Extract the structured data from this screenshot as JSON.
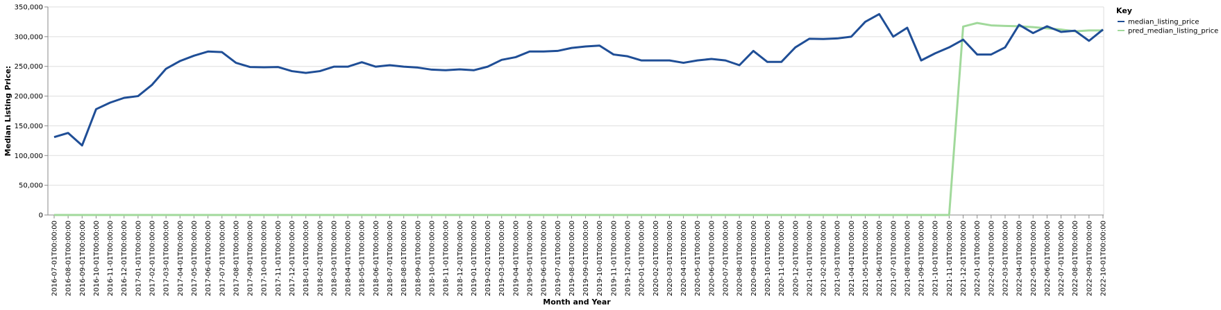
{
  "chart_data": {
    "type": "line",
    "xlabel": "Month and Year",
    "ylabel": "Median Listing Price:",
    "ylim": [
      0,
      350000
    ],
    "yticks": [
      "0",
      "50,000",
      "100,000",
      "150,000",
      "200,000",
      "250,000",
      "300,000",
      "350,000"
    ],
    "ytick_values": [
      0,
      50000,
      100000,
      150000,
      200000,
      250000,
      300000,
      350000
    ],
    "grid": true,
    "legend_placement": "top-right",
    "legend_title": "Key",
    "x": [
      "2016-07-01T00:00:00",
      "2016-08-01T00:00:00",
      "2016-09-01T00:00:00",
      "2016-10-01T00:00:00",
      "2016-11-01T00:00:00",
      "2016-12-01T00:00:00",
      "2017-01-01T00:00:00",
      "2017-02-01T00:00:00",
      "2017-03-01T00:00:00",
      "2017-04-01T00:00:00",
      "2017-05-01T00:00:00",
      "2017-06-01T00:00:00",
      "2017-07-01T00:00:00",
      "2017-08-01T00:00:00",
      "2017-09-01T00:00:00",
      "2017-10-01T00:00:00",
      "2017-11-01T00:00:00",
      "2017-12-01T00:00:00",
      "2018-01-01T00:00:00",
      "2018-02-01T00:00:00",
      "2018-03-01T00:00:00",
      "2018-04-01T00:00:00",
      "2018-05-01T00:00:00",
      "2018-06-01T00:00:00",
      "2018-07-01T00:00:00",
      "2018-08-01T00:00:00",
      "2018-09-01T00:00:00",
      "2018-10-01T00:00:00",
      "2018-11-01T00:00:00",
      "2018-12-01T00:00:00",
      "2019-01-01T00:00:00",
      "2019-02-01T00:00:00",
      "2019-03-01T00:00:00",
      "2019-04-01T00:00:00",
      "2019-05-01T00:00:00",
      "2019-06-01T00:00:00",
      "2019-07-01T00:00:00",
      "2019-08-01T00:00:00",
      "2019-09-01T00:00:00",
      "2019-10-01T00:00:00",
      "2019-11-01T00:00:00",
      "2019-12-01T00:00:00",
      "2020-01-01T00:00:00",
      "2020-02-01T00:00:00",
      "2020-03-01T00:00:00",
      "2020-04-01T00:00:00",
      "2020-05-01T00:00:00",
      "2020-06-01T00:00:00",
      "2020-07-01T00:00:00",
      "2020-08-01T00:00:00",
      "2020-09-01T00:00:00",
      "2020-10-01T00:00:00",
      "2020-11-01T00:00:00",
      "2020-12-01T00:00:00",
      "2021-01-01T00:00:00",
      "2021-02-01T00:00:00",
      "2021-03-01T00:00:00",
      "2021-04-01T00:00:00",
      "2021-05-01T00:00:00",
      "2021-06-01T00:00:00",
      "2021-07-01T00:00:00",
      "2021-08-01T00:00:00",
      "2021-09-01T00:00:00",
      "2021-10-01T00:00:00",
      "2021-11-01T00:00:00",
      "2021-12-01T00:00:00",
      "2022-01-01T00:00:00",
      "2022-02-01T00:00:00",
      "2022-03-01T00:00:00",
      "2022-04-01T00:00:00",
      "2022-05-01T00:00:00",
      "2022-06-01T00:00:00",
      "2022-07-01T00:00:00",
      "2022-08-01T00:00:00",
      "2022-09-01T00:00:00",
      "2022-10-01T00:00:00"
    ],
    "series": [
      {
        "name": "median_listing_price",
        "color": "#1f4e96",
        "values": [
          131000,
          138000,
          117000,
          178000,
          189000,
          197000,
          200000,
          219000,
          246000,
          259000,
          268000,
          275000,
          274000,
          256000,
          249000,
          248500,
          249000,
          242000,
          239000,
          242000,
          249500,
          249500,
          257000,
          249500,
          252000,
          249500,
          248000,
          244500,
          243500,
          245000,
          243500,
          249500,
          261000,
          265500,
          275000,
          275000,
          276000,
          281000,
          283500,
          285000,
          270000,
          267000,
          260000,
          260000,
          260000,
          256000,
          260000,
          262500,
          260000,
          252000,
          276000,
          257500,
          257500,
          282000,
          296500,
          296000,
          297000,
          300000,
          325000,
          338000,
          300000,
          315000,
          260000,
          272000,
          282000,
          295000,
          270000,
          270000,
          282000,
          320000,
          306000,
          317500,
          308000,
          310000,
          293000,
          312000
        ]
      },
      {
        "name": "pred_median_listing_price",
        "color": "#a1d99b",
        "values": [
          0,
          0,
          0,
          0,
          0,
          0,
          0,
          0,
          0,
          0,
          0,
          0,
          0,
          0,
          0,
          0,
          0,
          0,
          0,
          0,
          0,
          0,
          0,
          0,
          0,
          0,
          0,
          0,
          0,
          0,
          0,
          0,
          0,
          0,
          0,
          0,
          0,
          0,
          0,
          0,
          0,
          0,
          0,
          0,
          0,
          0,
          0,
          0,
          0,
          0,
          0,
          0,
          0,
          0,
          0,
          0,
          0,
          0,
          0,
          0,
          0,
          0,
          0,
          0,
          0,
          317000,
          323000,
          319000,
          318000,
          317500,
          316000,
          314000,
          312000,
          309000,
          310500,
          310500
        ]
      }
    ]
  }
}
